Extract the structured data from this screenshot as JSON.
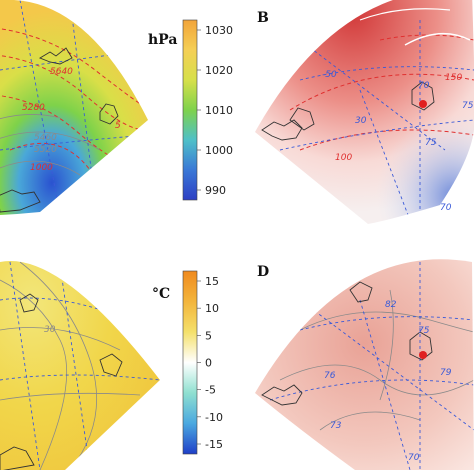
{
  "panels": [
    {
      "letter": "",
      "kind": "pressure"
    },
    {
      "letter": "B",
      "kind": "anomaly"
    },
    {
      "letter": "",
      "kind": "temperature"
    },
    {
      "letter": "D",
      "kind": "temp-anomaly"
    }
  ],
  "colorbars": [
    {
      "unit": "hPa",
      "ticks": [
        "1030",
        "1020",
        "1010",
        "1000",
        "990"
      ],
      "stops": [
        "#f2a43a",
        "#f5cf55",
        "#d7e04a",
        "#7fd24c",
        "#4fc0c8",
        "#3a78d6",
        "#2d3fc4"
      ]
    },
    {
      "unit": "°C",
      "ticks": [
        "15",
        "10",
        "5",
        "0",
        "-5",
        "-10",
        "-15"
      ],
      "stops": [
        "#f08a1e",
        "#f3b53c",
        "#f4e06a",
        "#ffffff",
        "#8fe0d0",
        "#4aa8e0",
        "#1f3fc8"
      ]
    }
  ],
  "contour_labels": {
    "A": [
      "5640",
      "5280",
      "5460",
      "5520",
      "1000",
      "5"
    ],
    "B": [
      "150",
      "100",
      "-50",
      "30",
      "70",
      "75",
      "75",
      "70"
    ],
    "C": [
      "30"
    ],
    "D": [
      "82",
      "75",
      "76",
      "79",
      "73",
      "70"
    ]
  },
  "colors": {
    "station_marker": "#e02020",
    "grid_line": "#3a5ad8",
    "contour_red": "#e03030"
  }
}
